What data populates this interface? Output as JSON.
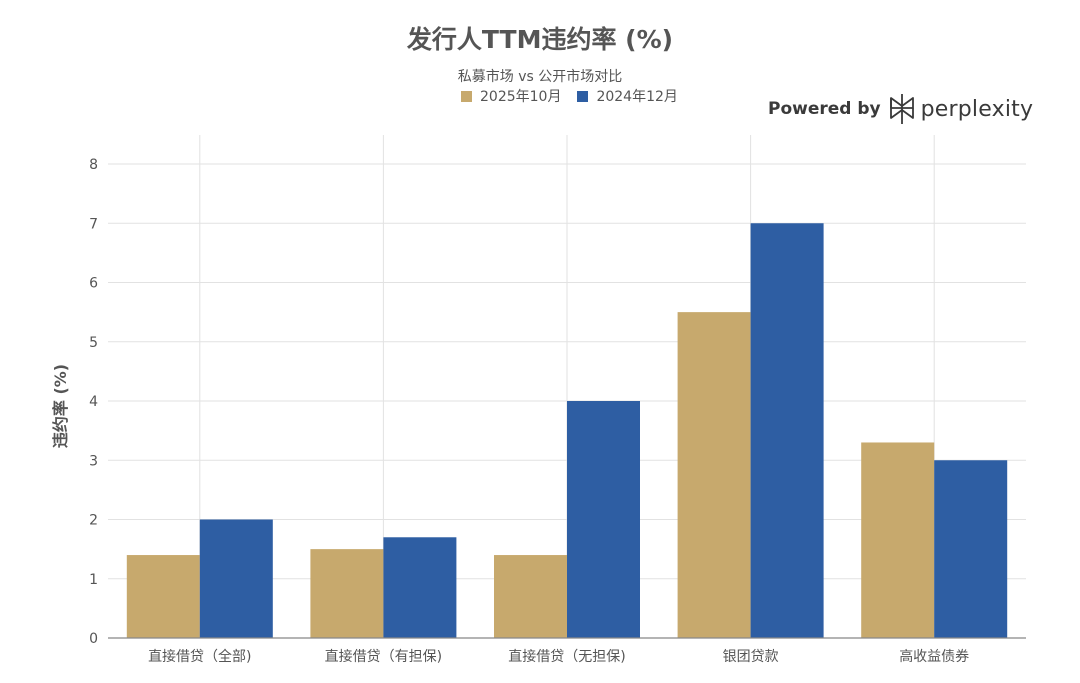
{
  "title": "发行人TTM违约率 (%)",
  "subtitle": "私募市场 vs 公开市场对比",
  "powered_by": {
    "label": "Powered by",
    "brand": "perplexity",
    "icon": "perplexity-logo-icon"
  },
  "colors": {
    "series_2025": "#c7a96d",
    "series_2024": "#2e5ea3",
    "grid": "#e2e2e2",
    "axis": "#888888",
    "text": "#555555"
  },
  "chart_data": {
    "type": "bar",
    "title": "发行人TTM违约率 (%)",
    "subtitle": "私募市场 vs 公开市场对比",
    "xlabel": "",
    "ylabel": "违约率 (%)",
    "ylim": [
      0,
      8
    ],
    "yticks": [
      0,
      1,
      2,
      3,
      4,
      5,
      6,
      7,
      8
    ],
    "categories": [
      "直接借贷（全部)",
      "直接借贷（有担保)",
      "直接借贷（无担保)",
      "银团贷款",
      "高收益债券"
    ],
    "series": [
      {
        "name": "2025年10月",
        "values": [
          1.4,
          1.5,
          1.4,
          5.5,
          3.3
        ],
        "color": "#c7a96d"
      },
      {
        "name": "2024年12月",
        "values": [
          2.0,
          1.7,
          4.0,
          7.0,
          3.0
        ],
        "color": "#2e5ea3"
      }
    ],
    "grid": true,
    "legend": "top-center"
  }
}
